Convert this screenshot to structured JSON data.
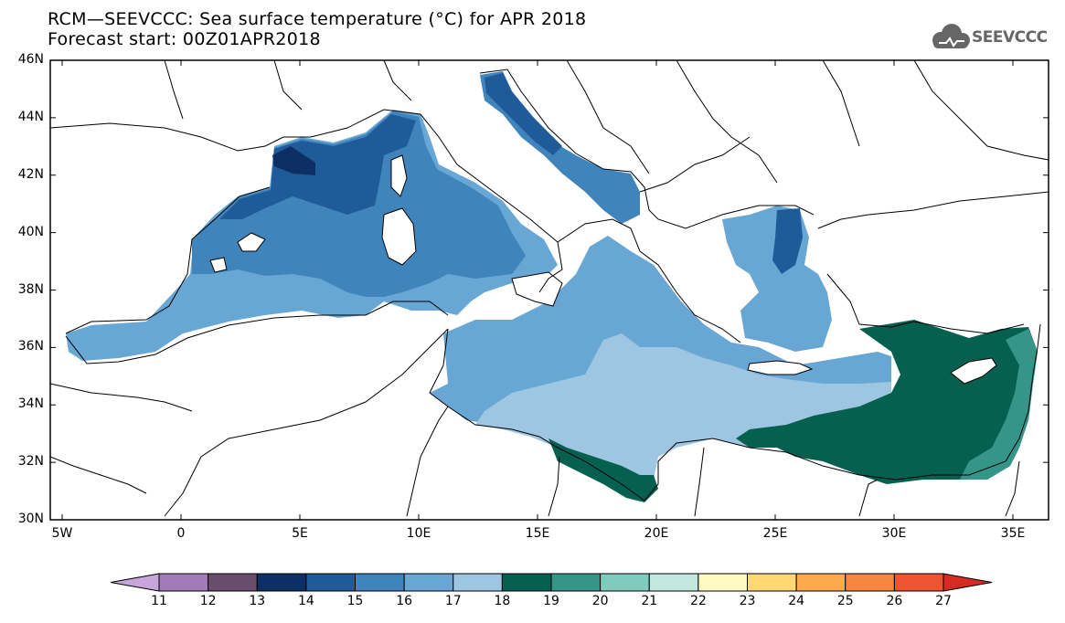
{
  "title": {
    "line1": "RCM—SEEVCCC: Sea surface temperature (°C) for APR 2018",
    "line2": "Forecast start: 00Z01APR2018"
  },
  "logo": {
    "text": "SEEVCCC",
    "icon": "cloud-icon"
  },
  "map": {
    "lat_labels": [
      "46N",
      "44N",
      "42N",
      "40N",
      "38N",
      "36N",
      "34N",
      "32N",
      "30N"
    ],
    "lon_labels": [
      "5W",
      "0",
      "5E",
      "10E",
      "15E",
      "20E",
      "25E",
      "30E",
      "35E"
    ],
    "lat_range": [
      30,
      46
    ],
    "lon_range": [
      -5.5,
      36.5
    ]
  },
  "colorbar": {
    "labels": [
      "11",
      "12",
      "13",
      "14",
      "15",
      "16",
      "17",
      "18",
      "19",
      "20",
      "21",
      "22",
      "23",
      "24",
      "25",
      "26",
      "27"
    ],
    "colors": [
      "#c8a6dc",
      "#a47bba",
      "#694c6e",
      "#0e2f63",
      "#1f5a99",
      "#3f85bc",
      "#68a6d3",
      "#9ec6e2",
      "#05604f",
      "#369589",
      "#7fcbbd",
      "#c2e7df",
      "#fff9c4",
      "#ffd873",
      "#ffa94d",
      "#f58742",
      "#ee5431",
      "#d62b22"
    ]
  }
}
